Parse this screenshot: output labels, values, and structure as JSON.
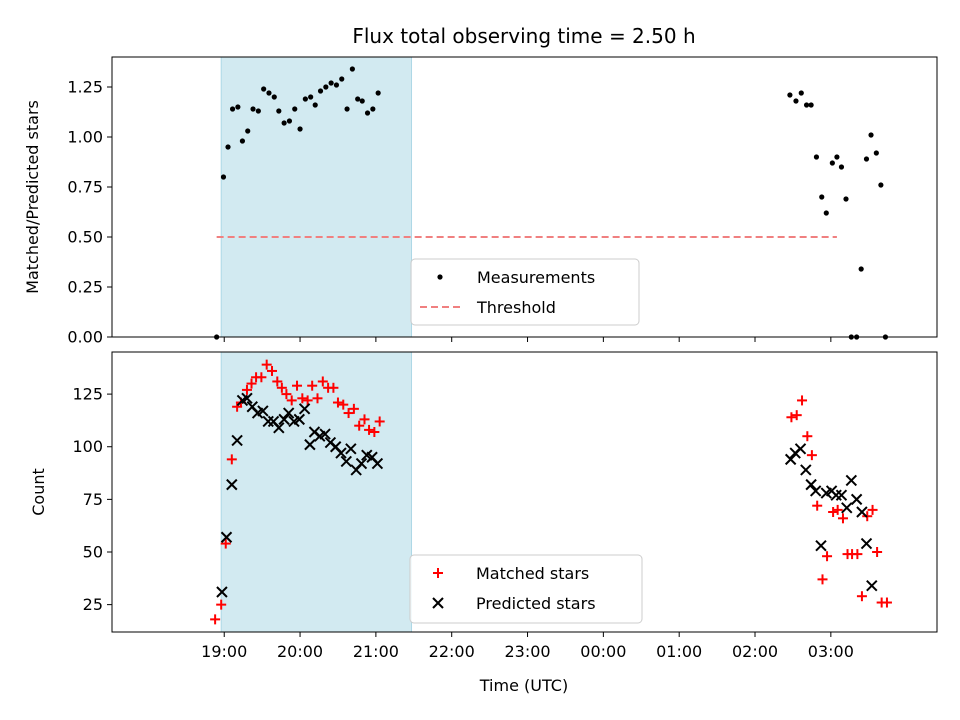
{
  "title": "Flux total observing time = 2.50 h",
  "colors": {
    "shade": "#add8e6",
    "matched": "#ff0000",
    "predicted": "#000000",
    "measurement": "#000000",
    "threshold": "#f08080"
  },
  "chart_data": [
    {
      "type": "scatter",
      "panel": "top",
      "ylabel": "Matched/Predicted stars",
      "ylim": [
        0,
        1.4
      ],
      "yticks": [
        0.0,
        0.25,
        0.5,
        0.75,
        1.0,
        1.25
      ],
      "ytick_labels": [
        "0.00",
        "0.25",
        "0.50",
        "0.75",
        "1.00",
        "1.25"
      ],
      "x_unit": "hours after 18:00 UTC",
      "shaded_span": [
        0.96,
        3.47
      ],
      "legend": {
        "placement": "lower center",
        "entries": [
          "Measurements",
          "Threshold"
        ]
      },
      "threshold": {
        "name": "Threshold",
        "value": 0.5,
        "x": [
          0.9,
          9.08
        ]
      },
      "series": [
        {
          "name": "Measurements",
          "points": [
            [
              0.9,
              0.0
            ],
            [
              0.99,
              0.8
            ],
            [
              1.05,
              0.95
            ],
            [
              1.11,
              1.14
            ],
            [
              1.18,
              1.15
            ],
            [
              1.24,
              0.98
            ],
            [
              1.31,
              1.03
            ],
            [
              1.38,
              1.14
            ],
            [
              1.45,
              1.13
            ],
            [
              1.52,
              1.24
            ],
            [
              1.59,
              1.22
            ],
            [
              1.66,
              1.2
            ],
            [
              1.72,
              1.13
            ],
            [
              1.79,
              1.07
            ],
            [
              1.86,
              1.08
            ],
            [
              1.93,
              1.14
            ],
            [
              2.0,
              1.04
            ],
            [
              2.07,
              1.19
            ],
            [
              2.14,
              1.2
            ],
            [
              2.2,
              1.16
            ],
            [
              2.27,
              1.23
            ],
            [
              2.34,
              1.25
            ],
            [
              2.41,
              1.27
            ],
            [
              2.48,
              1.26
            ],
            [
              2.55,
              1.29
            ],
            [
              2.62,
              1.14
            ],
            [
              2.69,
              1.34
            ],
            [
              2.76,
              1.19
            ],
            [
              2.82,
              1.18
            ],
            [
              2.89,
              1.12
            ],
            [
              2.96,
              1.14
            ],
            [
              3.03,
              1.22
            ],
            [
              8.46,
              1.21
            ],
            [
              8.54,
              1.18
            ],
            [
              8.61,
              1.22
            ],
            [
              8.68,
              1.16
            ],
            [
              8.74,
              1.16
            ],
            [
              8.81,
              0.9
            ],
            [
              8.88,
              0.7
            ],
            [
              8.94,
              0.62
            ],
            [
              9.02,
              0.87
            ],
            [
              9.08,
              0.9
            ],
            [
              9.14,
              0.85
            ],
            [
              9.2,
              0.69
            ],
            [
              9.27,
              0.0
            ],
            [
              9.34,
              0.0
            ],
            [
              9.4,
              0.34
            ],
            [
              9.47,
              0.89
            ],
            [
              9.53,
              1.01
            ],
            [
              9.6,
              0.92
            ],
            [
              9.66,
              0.76
            ],
            [
              9.72,
              0.0
            ]
          ]
        }
      ]
    },
    {
      "type": "scatter",
      "panel": "bottom",
      "xlabel": "Time (UTC)",
      "ylabel": "Count",
      "ylim": [
        12,
        145
      ],
      "yticks": [
        25,
        50,
        75,
        100,
        125
      ],
      "ytick_labels": [
        "25",
        "50",
        "75",
        "100",
        "125"
      ],
      "xlim": [
        -0.48,
        10.4
      ],
      "xticks": [
        1,
        2,
        3,
        4,
        5,
        6,
        7,
        8,
        9,
        10
      ],
      "xtick_labels": [
        "19:00",
        "20:00",
        "21:00",
        "22:00",
        "23:00",
        "00:00",
        "01:00",
        "02:00",
        "03:00"
      ],
      "xtick_positions": [
        1,
        2,
        3,
        4,
        5,
        6,
        7,
        8,
        9
      ],
      "x_unit": "hours after 18:00 UTC",
      "shaded_span": [
        0.96,
        3.47
      ],
      "legend": {
        "placement": "lower center",
        "entries": [
          "Matched stars",
          "Predicted stars"
        ]
      },
      "series": [
        {
          "name": "Matched stars",
          "marker": "+",
          "points": [
            [
              0.88,
              18
            ],
            [
              0.96,
              25
            ],
            [
              1.02,
              54
            ],
            [
              1.1,
              94
            ],
            [
              1.17,
              119
            ],
            [
              1.22,
              121
            ],
            [
              1.3,
              127
            ],
            [
              1.36,
              130
            ],
            [
              1.42,
              133
            ],
            [
              1.49,
              133
            ],
            [
              1.56,
              139
            ],
            [
              1.63,
              136
            ],
            [
              1.7,
              131
            ],
            [
              1.76,
              128
            ],
            [
              1.82,
              125
            ],
            [
              1.89,
              122
            ],
            [
              1.96,
              129
            ],
            [
              2.03,
              123
            ],
            [
              2.1,
              122
            ],
            [
              2.16,
              129
            ],
            [
              2.23,
              123
            ],
            [
              2.3,
              131
            ],
            [
              2.37,
              128
            ],
            [
              2.44,
              128
            ],
            [
              2.5,
              121
            ],
            [
              2.57,
              120
            ],
            [
              2.64,
              116
            ],
            [
              2.71,
              118
            ],
            [
              2.78,
              110
            ],
            [
              2.85,
              113
            ],
            [
              2.91,
              108
            ],
            [
              2.98,
              107
            ],
            [
              3.05,
              112
            ],
            [
              8.48,
              114
            ],
            [
              8.55,
              115
            ],
            [
              8.62,
              122
            ],
            [
              8.69,
              105
            ],
            [
              8.75,
              96
            ],
            [
              8.82,
              72
            ],
            [
              8.89,
              37
            ],
            [
              8.95,
              48
            ],
            [
              9.03,
              69
            ],
            [
              9.09,
              70
            ],
            [
              9.16,
              66
            ],
            [
              9.22,
              49
            ],
            [
              9.28,
              49
            ],
            [
              9.35,
              49
            ],
            [
              9.41,
              29
            ],
            [
              9.48,
              67
            ],
            [
              9.55,
              70
            ],
            [
              9.61,
              50
            ],
            [
              9.67,
              26
            ],
            [
              9.74,
              26
            ]
          ]
        },
        {
          "name": "Predicted stars",
          "marker": "x",
          "points": [
            [
              0.97,
              31
            ],
            [
              1.03,
              57
            ],
            [
              1.1,
              82
            ],
            [
              1.17,
              103
            ],
            [
              1.24,
              122
            ],
            [
              1.3,
              123
            ],
            [
              1.37,
              119
            ],
            [
              1.44,
              116
            ],
            [
              1.51,
              117
            ],
            [
              1.58,
              112
            ],
            [
              1.65,
              112
            ],
            [
              1.72,
              109
            ],
            [
              1.79,
              113
            ],
            [
              1.85,
              116
            ],
            [
              1.92,
              112
            ],
            [
              1.99,
              113
            ],
            [
              2.06,
              118
            ],
            [
              2.13,
              101
            ],
            [
              2.19,
              107
            ],
            [
              2.26,
              105
            ],
            [
              2.33,
              106
            ],
            [
              2.4,
              102
            ],
            [
              2.47,
              100
            ],
            [
              2.54,
              97
            ],
            [
              2.61,
              93
            ],
            [
              2.67,
              99
            ],
            [
              2.74,
              89
            ],
            [
              2.81,
              92
            ],
            [
              2.88,
              96
            ],
            [
              2.95,
              95
            ],
            [
              3.02,
              92
            ],
            [
              8.47,
              94
            ],
            [
              8.53,
              97
            ],
            [
              8.6,
              99
            ],
            [
              8.67,
              89
            ],
            [
              8.74,
              82
            ],
            [
              8.8,
              79
            ],
            [
              8.87,
              53
            ],
            [
              8.94,
              78
            ],
            [
              9.01,
              79
            ],
            [
              9.07,
              77
            ],
            [
              9.14,
              77
            ],
            [
              9.21,
              71
            ],
            [
              9.27,
              84
            ],
            [
              9.34,
              75
            ],
            [
              9.41,
              69
            ],
            [
              9.47,
              54
            ],
            [
              9.54,
              34
            ]
          ]
        }
      ]
    }
  ]
}
